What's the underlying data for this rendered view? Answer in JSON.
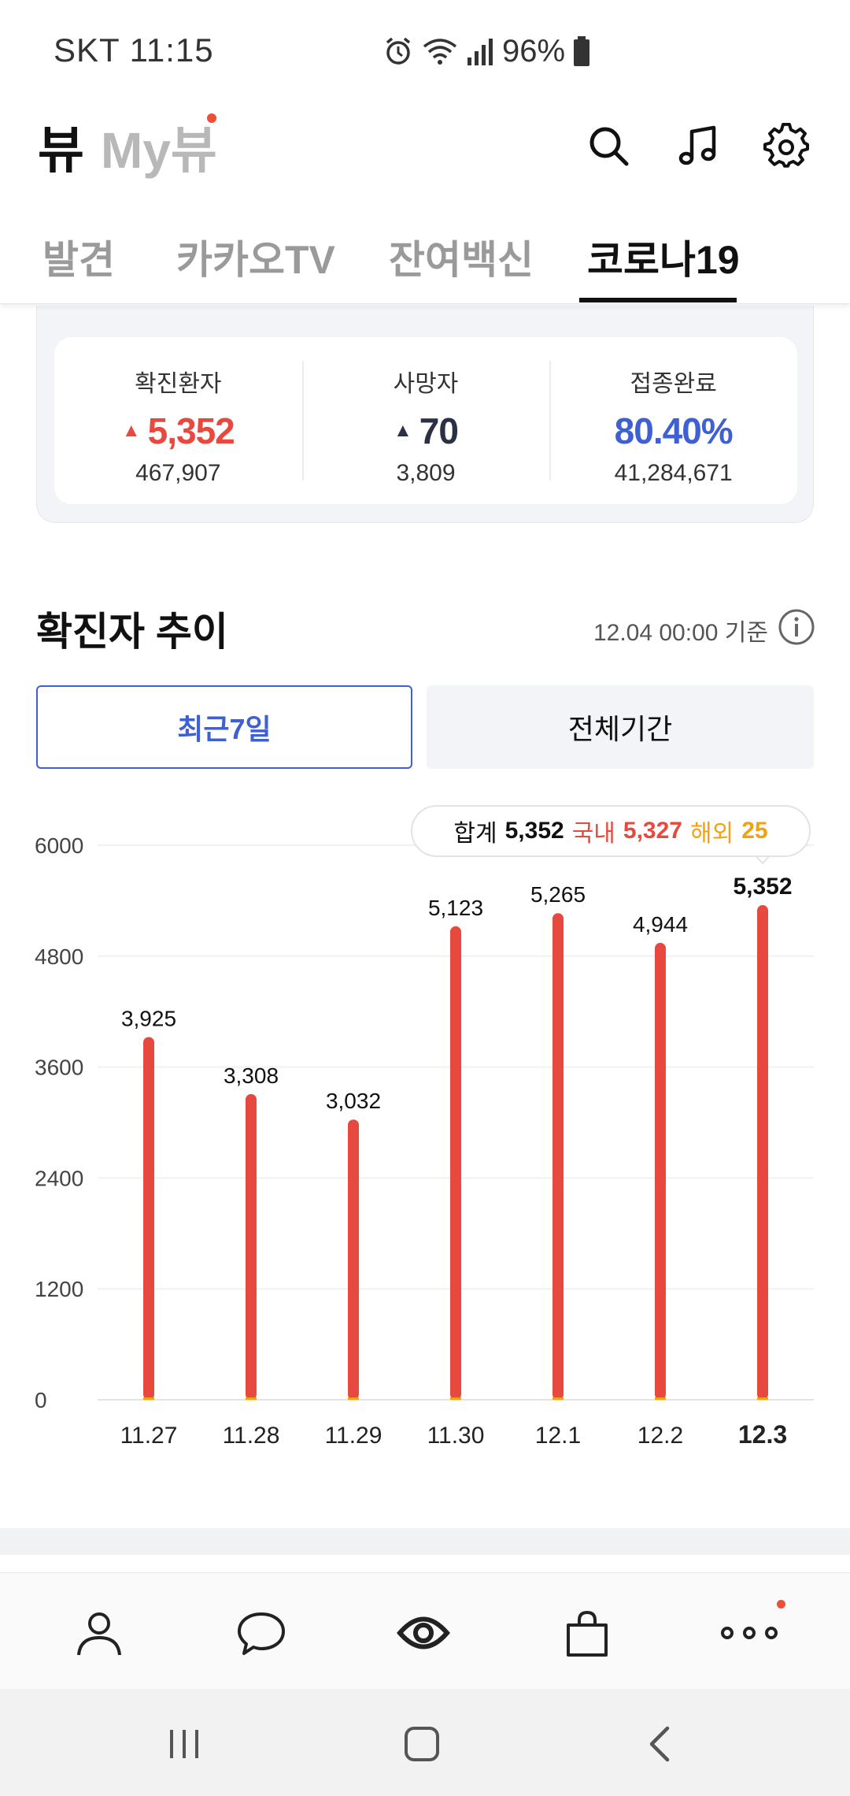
{
  "status_bar": {
    "carrier_time": "SKT 11:15",
    "battery_percent": "96%",
    "icons": [
      "alarm-icon",
      "wifi-icon",
      "signal-icon",
      "battery-icon"
    ]
  },
  "header": {
    "logo": "뷰",
    "my_view": "My뷰",
    "actions": [
      "search-icon",
      "music-icon",
      "gear-icon"
    ]
  },
  "tabs": [
    {
      "label": "발견",
      "active": false
    },
    {
      "label": "카카오TV",
      "active": false
    },
    {
      "label": "잔여백신",
      "active": false
    },
    {
      "label": "코로나19",
      "active": true
    }
  ],
  "stats": [
    {
      "label": "확진환자",
      "value": "5,352",
      "sub": "467,907",
      "trend": "▲",
      "color": "#e8493f"
    },
    {
      "label": "사망자",
      "value": "70",
      "sub": "3,809",
      "trend": "▲",
      "color": "#2b3145"
    },
    {
      "label": "접종완료",
      "value": "80.40%",
      "sub": "41,284,671",
      "trend": "",
      "color": "#3f5fd4"
    }
  ],
  "trend": {
    "title": "확진자 추이",
    "basis": "12.04 00:00 기준",
    "buttons": {
      "recent": "최근7일",
      "all": "전체기간"
    },
    "tooltip": {
      "total_label": "합계",
      "total_value": "5,352",
      "domestic_label": "국내",
      "domestic_value": "5,327",
      "overseas_label": "해외",
      "overseas_value": "25"
    }
  },
  "chart_data": {
    "type": "bar",
    "categories": [
      "11.27",
      "11.28",
      "11.29",
      "11.30",
      "12.1",
      "12.2",
      "12.3"
    ],
    "values": [
      3925,
      3308,
      3032,
      5123,
      5265,
      4944,
      5352
    ],
    "value_labels": [
      "3,925",
      "3,308",
      "3,032",
      "5,123",
      "5,265",
      "4,944",
      "5,352"
    ],
    "yticks": [
      0,
      1200,
      2400,
      3600,
      4800,
      6000
    ],
    "ylim": [
      0,
      6000
    ],
    "highlight_index": 6,
    "grid": true,
    "bar_color": "#e8493f",
    "overseas_color": "#f2a20f"
  },
  "bottom_nav": [
    "profile-icon",
    "chat-icon",
    "view-icon",
    "shopping-icon",
    "more-icon"
  ],
  "system_nav": [
    "recent-apps-icon",
    "home-icon",
    "back-icon"
  ]
}
